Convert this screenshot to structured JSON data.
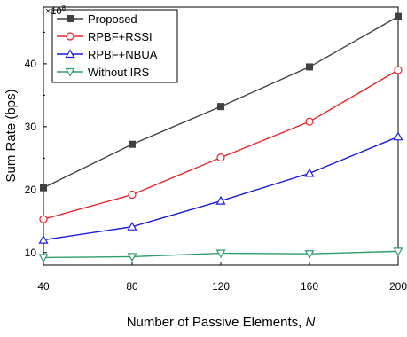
{
  "chart_data": {
    "type": "line",
    "x": [
      40,
      80,
      120,
      160,
      200
    ],
    "xlabel": "Number of Passive Elements, ",
    "xlabel_italic": "N",
    "ylabel": "Sum Rate (bps)",
    "y_multiplier": "×10",
    "y_multiplier_exp": "8",
    "xlim": [
      40,
      200
    ],
    "ylim": [
      8,
      49
    ],
    "xticks": [
      "40",
      "80",
      "120",
      "160",
      "200"
    ],
    "yticks": [
      {
        "value": 10,
        "label": "10"
      },
      {
        "value": 20,
        "label": "20"
      },
      {
        "value": 30,
        "label": "30"
      },
      {
        "value": 40,
        "label": "40"
      }
    ],
    "grid": false,
    "legend_position": "top-left",
    "series": [
      {
        "name": "Proposed",
        "color": "#404040",
        "marker": "square-filled",
        "values": [
          20.3,
          27.2,
          33.2,
          39.5,
          47.5
        ]
      },
      {
        "name": "RPBF+RSSI",
        "color": "#e8242a",
        "marker": "circle-open",
        "values": [
          15.3,
          19.2,
          25.1,
          30.8,
          39.0
        ]
      },
      {
        "name": "RPBF+NBUA",
        "color": "#1a1ae0",
        "marker": "triangle-up-open",
        "values": [
          12.0,
          14.1,
          18.2,
          22.6,
          28.4
        ]
      },
      {
        "name": "Without IRS",
        "color": "#2e9c6a",
        "marker": "triangle-down-open",
        "values": [
          9.2,
          9.35,
          9.9,
          9.8,
          10.2
        ]
      }
    ]
  }
}
